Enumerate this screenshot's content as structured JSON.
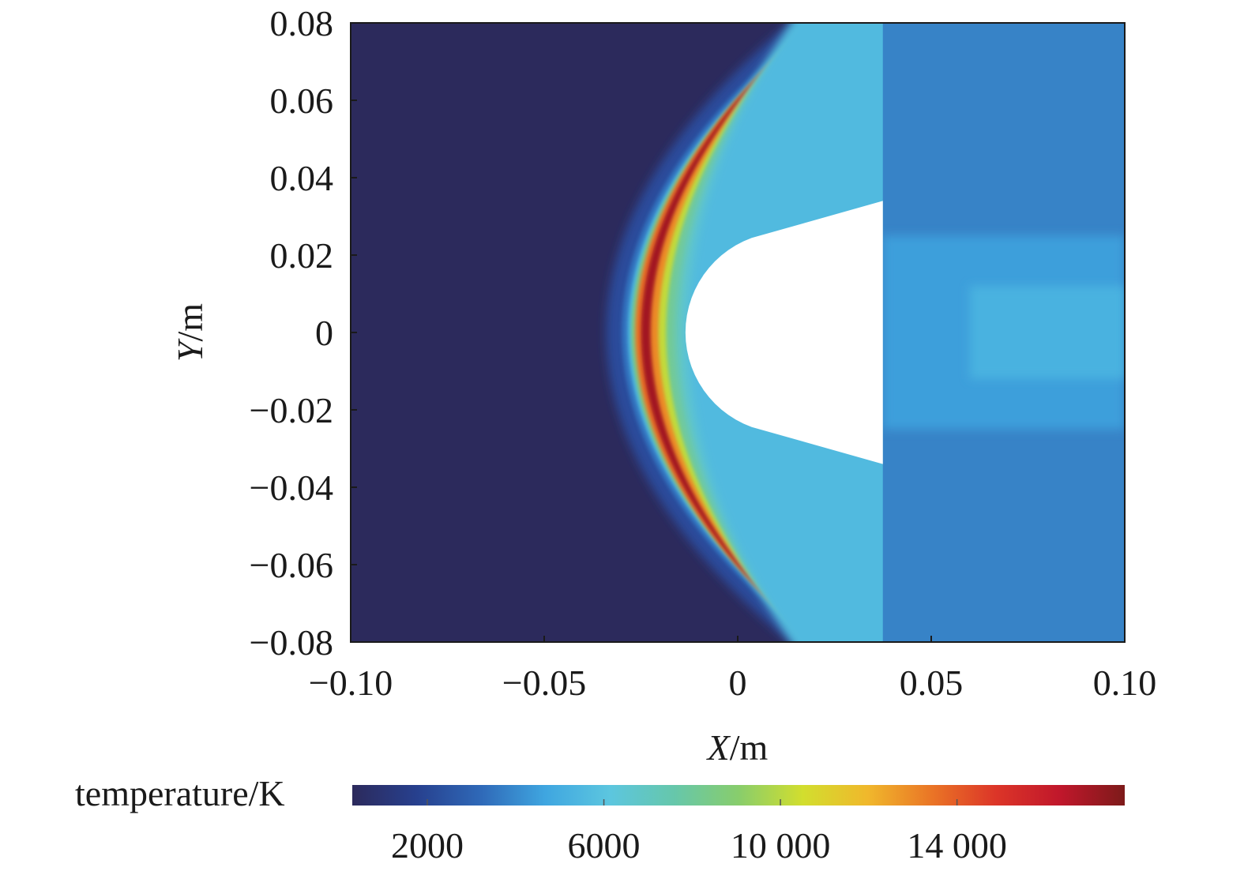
{
  "chart_data": {
    "type": "heatmap",
    "title": "",
    "xlabel": {
      "symbol": "X",
      "unit": "/m"
    },
    "ylabel": {
      "symbol": "Y",
      "unit": "/m"
    },
    "xlim": [
      -0.1,
      0.1
    ],
    "ylim": [
      -0.08,
      0.08
    ],
    "x_ticks": [
      {
        "value": -0.1,
        "label": "−0.10"
      },
      {
        "value": -0.05,
        "label": "−0.05"
      },
      {
        "value": 0,
        "label": "0"
      },
      {
        "value": 0.05,
        "label": "0.05"
      },
      {
        "value": 0.1,
        "label": "0.10"
      }
    ],
    "y_ticks": [
      {
        "value": 0.08,
        "label": "0.08"
      },
      {
        "value": 0.06,
        "label": "0.06"
      },
      {
        "value": 0.04,
        "label": "0.04"
      },
      {
        "value": 0.02,
        "label": "0.02"
      },
      {
        "value": 0,
        "label": "0"
      },
      {
        "value": -0.02,
        "label": "−0.02"
      },
      {
        "value": -0.04,
        "label": "−0.04"
      },
      {
        "value": -0.06,
        "label": "−0.06"
      },
      {
        "value": -0.08,
        "label": "−0.08"
      }
    ],
    "colorbar": {
      "label": "temperature/K",
      "range": [
        300,
        17800
      ],
      "ticks": [
        {
          "value": 2000,
          "label": "2000"
        },
        {
          "value": 6000,
          "label": "6000"
        },
        {
          "value": 10000,
          "label": "10 000"
        },
        {
          "value": 14000,
          "label": "14 000"
        }
      ],
      "colormap": [
        "#2c2a5c",
        "#27408e",
        "#2f69b8",
        "#3fa6e0",
        "#5cc6df",
        "#66c7ab",
        "#88cd6c",
        "#d2de2e",
        "#f0b82c",
        "#ea7526",
        "#dc3528",
        "#c0172b",
        "#7d1a1a"
      ]
    },
    "field": {
      "freestream_temperature": 300,
      "shock_standoff_x": -0.027,
      "peak_temperature_x": -0.025,
      "peak_temperature": 17000,
      "body": {
        "nose_x": -0.0135,
        "base_x": 0.0375,
        "base_half_height": 0.034,
        "nose_radius": 0.026
      },
      "wake_temperature": 4500
    }
  }
}
